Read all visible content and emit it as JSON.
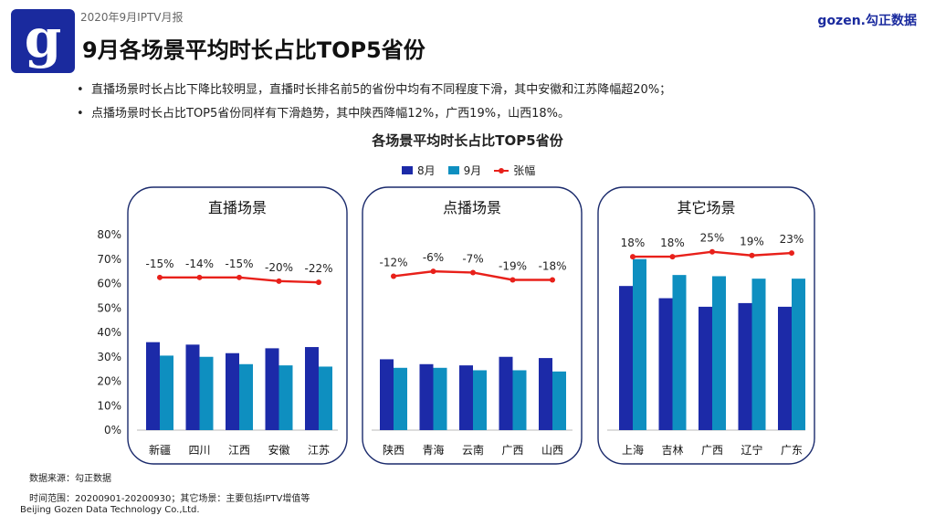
{
  "header": {
    "report_tag": "2020年9月IPTV月报",
    "title": "9月各场景平均时长占比TOP5省份",
    "brand": "gozen.勾正数据",
    "logo_letter": "g"
  },
  "bullets": [
    "直播场景时长占比下降比较明显，直播时长排名前5的省份中均有不同程度下滑，其中安徽和江苏降幅超20%；",
    "点播场景时长占比TOP5省份同样有下滑趋势，其中陕西降幅12%，广西19%，山西18%。"
  ],
  "footer": {
    "source": "数据来源：勾正数据",
    "range": "时间范围：20200901-20200930；其它场景：主要包括IPTV增值等",
    "company": "Beijing Gozen Data Technology Co.,Ltd."
  },
  "colors": {
    "aug": "#1c2aa8",
    "sep": "#0e8fc0",
    "change": "#e8201a"
  },
  "chart_data": {
    "type": "bar",
    "title": "各场景平均时长占比TOP5省份",
    "legend": [
      "8月",
      "9月",
      "张幅"
    ],
    "yticks": [
      "0%",
      "10%",
      "20%",
      "30%",
      "40%",
      "50%",
      "60%",
      "70%",
      "80%"
    ],
    "ylim": [
      0,
      80
    ],
    "panels": [
      {
        "name": "直播场景",
        "categories": [
          "新疆",
          "四川",
          "江西",
          "安徽",
          "江苏"
        ],
        "aug": [
          36,
          35,
          31.5,
          33.5,
          34
        ],
        "sep": [
          30.5,
          30,
          27,
          26.5,
          26
        ],
        "change": [
          "-15%",
          "-14%",
          "-15%",
          "-20%",
          "-22%"
        ],
        "change_line": [
          62.5,
          62.5,
          62.5,
          61,
          60.5
        ]
      },
      {
        "name": "点播场景",
        "categories": [
          "陕西",
          "青海",
          "云南",
          "广西",
          "山西"
        ],
        "aug": [
          29,
          27,
          26.5,
          30,
          29.5
        ],
        "sep": [
          25.5,
          25.5,
          24.5,
          24.5,
          24
        ],
        "change": [
          "-12%",
          "-6%",
          "-7%",
          "-19%",
          "-18%"
        ],
        "change_line": [
          63,
          65,
          64.5,
          61.5,
          61.5
        ]
      },
      {
        "name": "其它场景",
        "categories": [
          "上海",
          "吉林",
          "广西",
          "辽宁",
          "广东"
        ],
        "aug": [
          59,
          54,
          50.5,
          52,
          50.5
        ],
        "sep": [
          70,
          63.5,
          63,
          62,
          62
        ],
        "change": [
          "18%",
          "18%",
          "25%",
          "19%",
          "23%"
        ],
        "change_line": [
          71,
          71,
          73,
          71.5,
          72.5
        ]
      }
    ]
  }
}
